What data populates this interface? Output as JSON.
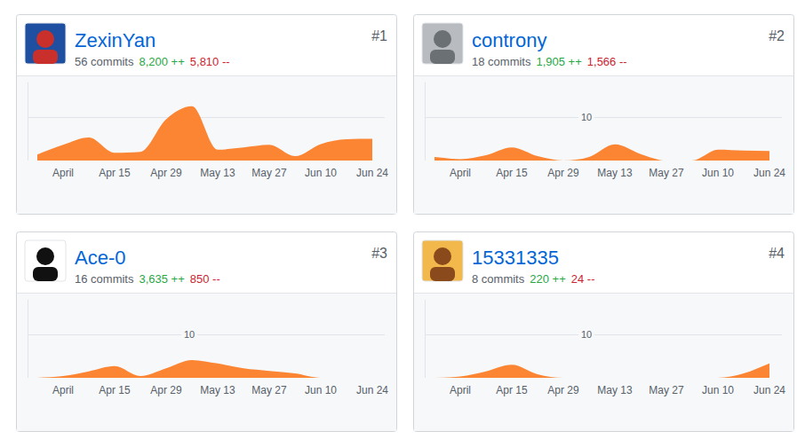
{
  "chart_data": [
    {
      "type": "area",
      "title": "ZexinYan",
      "annotations": [
        "#1",
        "56 commits",
        "8,200 ++",
        "5,810 --"
      ],
      "categories": [
        null,
        "April",
        null,
        "Apr 15",
        null,
        "Apr 29",
        null,
        "May 13",
        null,
        "May 27",
        null,
        "Jun 10",
        null,
        "Jun 24"
      ],
      "values": [
        1.4,
        3.6,
        5.3,
        1.8,
        2.0,
        9.5,
        12.5,
        2.5,
        3.0,
        3.6,
        1.0,
        3.8,
        4.9,
        5.0
      ],
      "color": "#fb8532",
      "ylim": [
        0,
        18
      ],
      "yticks": [
        10
      ],
      "grid": true,
      "tick_labels": "x"
    },
    {
      "type": "area",
      "title": "controny",
      "annotations": [
        "#2",
        "18 commits",
        "1,905 ++",
        "1,566 --"
      ],
      "categories": [
        null,
        "April",
        null,
        "Apr 15",
        null,
        "Apr 29",
        null,
        "May 13",
        null,
        "May 27",
        null,
        "Jun 10",
        null,
        "Jun 24"
      ],
      "values": [
        0.8,
        0.3,
        1.2,
        3.0,
        1.0,
        0,
        0.8,
        3.7,
        1.5,
        0,
        0,
        2.5,
        2.3,
        2.2
      ],
      "color": "#fb8532",
      "ylim": [
        0,
        18
      ],
      "yticks": [
        10
      ],
      "grid": true
    },
    {
      "type": "area",
      "title": "Ace-0",
      "annotations": [
        "#3",
        "16 commits",
        "3,635 ++",
        "850 --"
      ],
      "categories": [
        null,
        "April",
        null,
        "Apr 15",
        null,
        "Apr 29",
        null,
        "May 13",
        null,
        "May 27",
        null,
        "Jun 10",
        null,
        "Jun 24"
      ],
      "values": [
        0,
        0.4,
        1.5,
        2.7,
        0.4,
        2.2,
        4.1,
        3.3,
        2.2,
        1.6,
        1.0,
        0,
        0,
        0
      ],
      "color": "#fb8532",
      "ylim": [
        0,
        18
      ],
      "yticks": [
        10
      ],
      "grid": true
    },
    {
      "type": "area",
      "title": "15331335",
      "annotations": [
        "#4",
        "8 commits",
        "220 ++",
        "24 --"
      ],
      "categories": [
        null,
        "April",
        null,
        "Apr 15",
        null,
        "Apr 29",
        null,
        "May 13",
        null,
        "May 27",
        null,
        "Jun 10",
        null,
        "Jun 24"
      ],
      "values": [
        0,
        0.3,
        1.5,
        3.0,
        0.8,
        0,
        0,
        0,
        0,
        0,
        0,
        0,
        1.0,
        3.3
      ],
      "color": "#fb8532",
      "ylim": [
        0,
        18
      ],
      "yticks": [
        10
      ],
      "grid": true
    }
  ]
}
